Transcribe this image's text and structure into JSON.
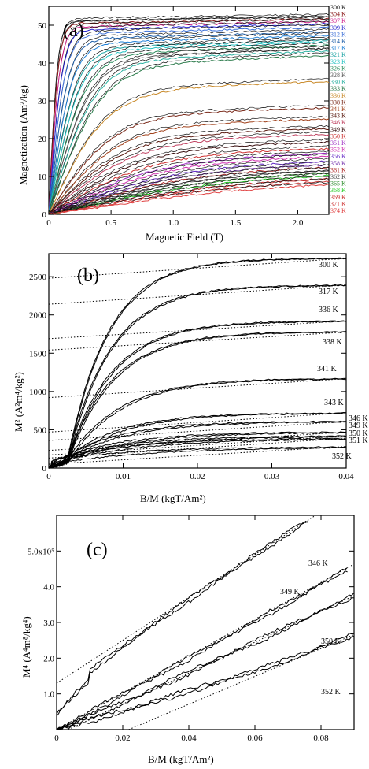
{
  "figure": {
    "panels": [
      "(a)",
      "(b)",
      "(c)"
    ]
  },
  "chart_data": [
    {
      "type": "line",
      "panel_label": "(a)",
      "xlabel": "Magnetic Field (T)",
      "ylabel": "Magnetization (Am²/kg)",
      "xlim": [
        0,
        2.25
      ],
      "ylim": [
        0,
        55
      ],
      "xticks": [
        {
          "value": 0,
          "label": "0"
        },
        {
          "value": 0.5,
          "label": "0.5"
        },
        {
          "value": 1.0,
          "label": "1.0"
        },
        {
          "value": 1.5,
          "label": "1.5"
        },
        {
          "value": 2.0,
          "label": "2.0"
        }
      ],
      "yticks": [
        {
          "value": 0,
          "label": "0"
        },
        {
          "value": 10,
          "label": "10"
        },
        {
          "value": 20,
          "label": "20"
        },
        {
          "value": 30,
          "label": "30"
        },
        {
          "value": 40,
          "label": "40"
        },
        {
          "value": 50,
          "label": "50"
        }
      ],
      "legend_placement": "right",
      "series": [
        {
          "name": "300 K",
          "color": "#222222",
          "ms": 52.5
        },
        {
          "name": "304 K",
          "color": "#8b1a1a",
          "ms": 52.0
        },
        {
          "name": "307 K",
          "color": "#d0208a",
          "ms": 51.3
        },
        {
          "name": "309 K",
          "color": "#2222cc",
          "ms": 50.7
        },
        {
          "name": "312 K",
          "color": "#3a6fd8",
          "ms": 49.8
        },
        {
          "name": "314 K",
          "color": "#1f5fa8",
          "ms": 48.6
        },
        {
          "name": "317 K",
          "color": "#1e7fd6",
          "ms": 47.6
        },
        {
          "name": "321 K",
          "color": "#1aa3a3",
          "ms": 46.4
        },
        {
          "name": "323 K",
          "color": "#22c2c2",
          "ms": 45.9
        },
        {
          "name": "326 K",
          "color": "#2a8a5a",
          "ms": 45.0
        },
        {
          "name": "328 K",
          "color": "#555555",
          "ms": 44.2
        },
        {
          "name": "330 K",
          "color": "#2ab0a0",
          "ms": 43.5
        },
        {
          "name": "333 K",
          "color": "#2a7a4a",
          "ms": 42.3
        },
        {
          "name": "336 K",
          "color": "#c98a2a",
          "ms": 35.5
        },
        {
          "name": "338 K",
          "color": "#7a2a1a",
          "ms": 28.5
        },
        {
          "name": "341 K",
          "color": "#a0401a",
          "ms": 25.5
        },
        {
          "name": "343 K",
          "color": "#5a1a10",
          "ms": 23.0
        },
        {
          "name": "346 K",
          "color": "#c04060",
          "ms": 21.5
        },
        {
          "name": "349 K",
          "color": "#3a1010",
          "ms": 19.5
        },
        {
          "name": "350 K",
          "color": "#cc3030",
          "ms": 17.8
        },
        {
          "name": "351 K",
          "color": "#9a22c0",
          "ms": 16.5
        },
        {
          "name": "352 K",
          "color": "#d030b0",
          "ms": 15.8
        },
        {
          "name": "356 K",
          "color": "#6a30c8",
          "ms": 14.6
        },
        {
          "name": "358 K",
          "color": "#7a3ab0",
          "ms": 13.8
        },
        {
          "name": "361 K",
          "color": "#b02a2a",
          "ms": 13.2
        },
        {
          "name": "362 K",
          "color": "#444444",
          "ms": 12.5
        },
        {
          "name": "365 K",
          "color": "#2a8a2a",
          "ms": 11.8
        },
        {
          "name": "368 K",
          "color": "#22cc22",
          "ms": 11.2
        },
        {
          "name": "369 K",
          "color": "#c82a2a",
          "ms": 10.5
        },
        {
          "name": "371 K",
          "color": "#d03a3a",
          "ms": 9.8
        },
        {
          "name": "374 K",
          "color": "#e04040",
          "ms": 9.0
        }
      ]
    },
    {
      "type": "line",
      "panel_label": "(b)",
      "xlabel": "B/M (kgT/Am²)",
      "ylabel": "M² (A²m⁴/kg²)",
      "xlim": [
        0,
        0.04
      ],
      "ylim": [
        0,
        2800
      ],
      "xticks": [
        {
          "value": 0,
          "label": "0"
        },
        {
          "value": 0.01,
          "label": "0.01"
        },
        {
          "value": 0.02,
          "label": "0.02"
        },
        {
          "value": 0.03,
          "label": "0.03"
        },
        {
          "value": 0.04,
          "label": "0.04"
        }
      ],
      "yticks": [
        {
          "value": 0,
          "label": "0"
        },
        {
          "value": 500,
          "label": "500"
        },
        {
          "value": 1000,
          "label": "1000"
        },
        {
          "value": 1500,
          "label": "1500"
        },
        {
          "value": 2000,
          "label": "2000"
        },
        {
          "value": 2500,
          "label": "2500"
        }
      ],
      "series": [
        {
          "name": "300 K",
          "sat": 2740,
          "x0": 0.0025,
          "k": 0.0055,
          "intercept": 2480,
          "slope": 6500
        },
        {
          "name": "317 K",
          "sat": 2390,
          "x0": 0.0025,
          "k": 0.0058,
          "intercept": 2140,
          "slope": 6300
        },
        {
          "name": "336 K",
          "sat": 1920,
          "x0": 0.0025,
          "k": 0.006,
          "intercept": 1690,
          "slope": 5800
        },
        {
          "name": "338 K",
          "sat": 1780,
          "x0": 0.0025,
          "k": 0.0062,
          "intercept": 1540,
          "slope": 5900
        },
        {
          "name": "341 K",
          "sat": 1170,
          "x0": 0.0025,
          "k": 0.007,
          "intercept": 920,
          "slope": 6200
        },
        {
          "name": "343 K",
          "sat": 720,
          "x0": 0.002,
          "k": 0.0075,
          "intercept": 470,
          "slope": 6300
        },
        {
          "name": "346 K",
          "sat": 610,
          "x0": 0.0015,
          "k": 0.008,
          "intercept": 360,
          "slope": 6200
        },
        {
          "name": "349 K",
          "sat": 470,
          "x0": 0.001,
          "k": 0.009,
          "intercept": 230,
          "slope": 6000
        },
        {
          "name": "350 K",
          "sat": 420,
          "x0": 0.0008,
          "k": 0.01,
          "intercept": 170,
          "slope": 6300
        },
        {
          "name": "351 K",
          "sat": 390,
          "x0": 0.0006,
          "k": 0.011,
          "intercept": 130,
          "slope": 6500
        },
        {
          "name": "352 K",
          "sat": 280,
          "x0": 0.0005,
          "k": 0.013,
          "intercept": 50,
          "slope": 5800
        }
      ]
    },
    {
      "type": "line",
      "panel_label": "(c)",
      "xlabel": "B/M (kgT/Am²)",
      "ylabel": "M⁴ (A⁴m⁸/kg⁴)",
      "xlim": [
        0,
        0.09
      ],
      "ylim": [
        0,
        600000
      ],
      "xticks": [
        {
          "value": 0,
          "label": "0"
        },
        {
          "value": 0.02,
          "label": "0.02"
        },
        {
          "value": 0.04,
          "label": "0.04"
        },
        {
          "value": 0.06,
          "label": "0.06"
        },
        {
          "value": 0.08,
          "label": "0.08"
        }
      ],
      "yticks": [
        {
          "value": 100000,
          "label": "1.0"
        },
        {
          "value": 200000,
          "label": "2.0"
        },
        {
          "value": 300000,
          "label": "3.0"
        },
        {
          "value": 400000,
          "label": "4.0"
        },
        {
          "value": 500000,
          "label": "5.0x10⁵"
        }
      ],
      "series": [
        {
          "name": "346 K",
          "x_end": 0.076,
          "y_end": 585000,
          "intercept": 130000,
          "slope": 6000000
        },
        {
          "name": "349 K",
          "x_end": 0.088,
          "y_end": 445000,
          "intercept": 0,
          "slope": 5150000
        },
        {
          "name": "350 K",
          "x_end": 0.09,
          "y_end": 375000,
          "intercept": -15000,
          "slope": 4330000
        },
        {
          "name": "352 K",
          "x_end": 0.09,
          "y_end": 265000,
          "intercept": -85000,
          "slope": 3900000
        }
      ]
    }
  ]
}
